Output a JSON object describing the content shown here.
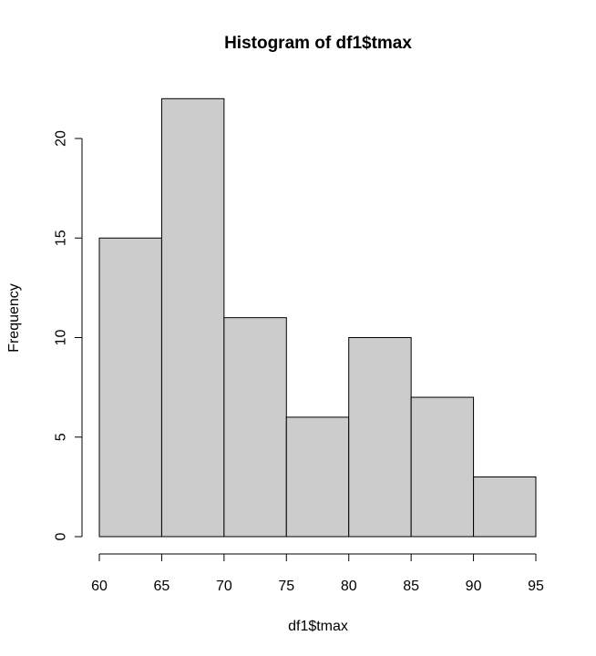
{
  "chart_data": {
    "type": "bar",
    "title": "Histogram of df1$tmax",
    "xlabel": "df1$tmax",
    "ylabel": "Frequency",
    "bins": [
      {
        "from": 60,
        "to": 65,
        "count": 15
      },
      {
        "from": 65,
        "to": 70,
        "count": 22
      },
      {
        "from": 70,
        "to": 75,
        "count": 11
      },
      {
        "from": 75,
        "to": 80,
        "count": 6
      },
      {
        "from": 80,
        "to": 85,
        "count": 10
      },
      {
        "from": 85,
        "to": 90,
        "count": 7
      },
      {
        "from": 90,
        "to": 95,
        "count": 3
      }
    ],
    "xlim": [
      60,
      95
    ],
    "ylim": [
      0,
      22
    ],
    "x_ticks": [
      60,
      65,
      70,
      75,
      80,
      85,
      90,
      95
    ],
    "y_ticks": [
      0,
      5,
      10,
      15,
      20
    ],
    "bar_color": "#cccccc",
    "grid": false
  }
}
